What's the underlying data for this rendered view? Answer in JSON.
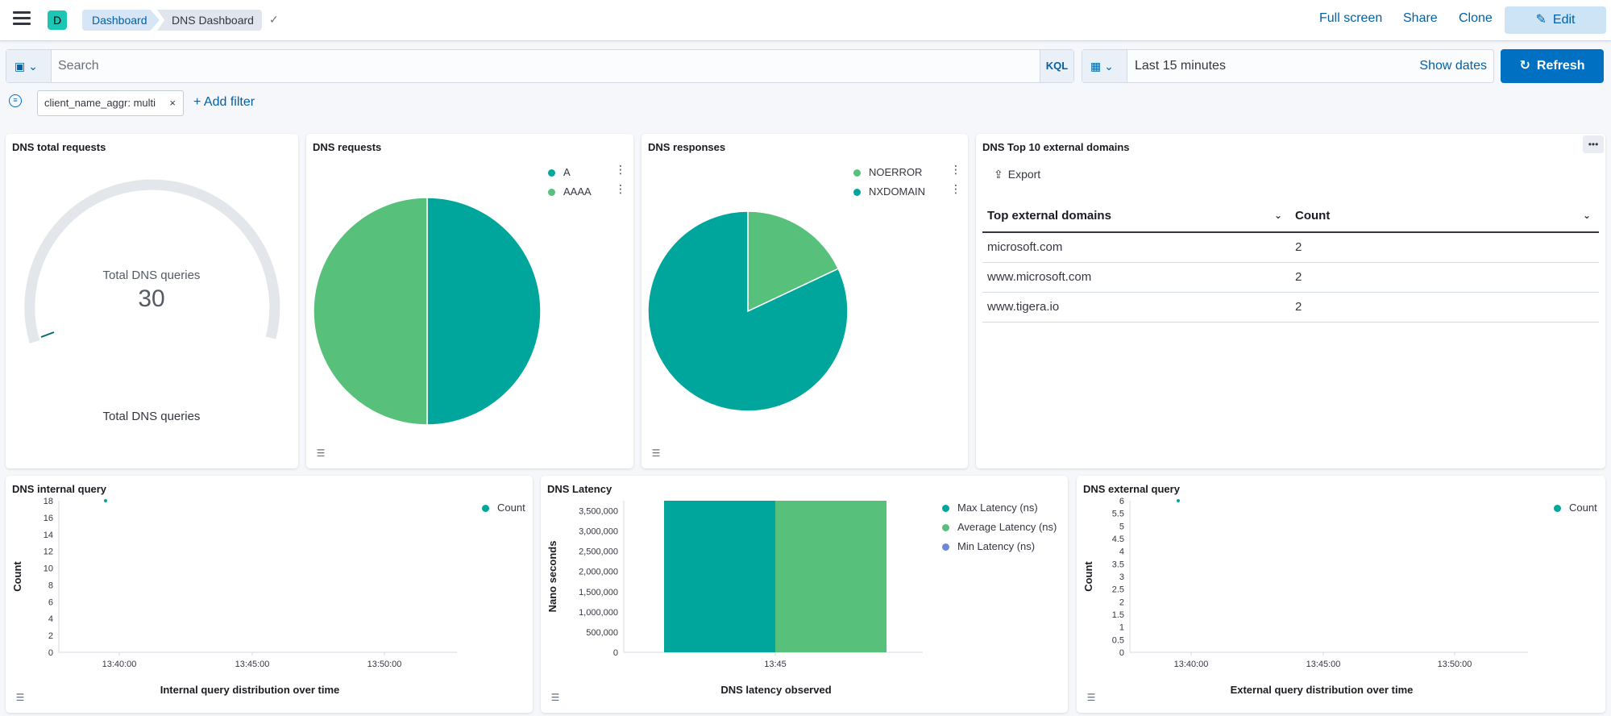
{
  "header": {
    "avatar_letter": "D",
    "breadcrumbs": [
      "Dashboard",
      "DNS Dashboard"
    ],
    "actions": {
      "full_screen": "Full screen",
      "share": "Share",
      "clone": "Clone",
      "edit": "Edit"
    }
  },
  "query_bar": {
    "placeholder": "Search",
    "language": "KQL",
    "time_range": "Last 15 minutes",
    "show_dates": "Show dates",
    "refresh": "Refresh"
  },
  "filters": {
    "pills": [
      "client_name_aggr: multi"
    ],
    "add_filter": "+ Add filter"
  },
  "panels": {
    "total_requests": {
      "title": "DNS total requests",
      "gauge_label": "Total DNS queries",
      "gauge_value": "30",
      "bottom_label": "Total DNS queries"
    },
    "requests": {
      "title": "DNS requests",
      "legend": [
        "A",
        "AAAA"
      ]
    },
    "responses": {
      "title": "DNS responses",
      "legend": [
        "NOERROR",
        "NXDOMAIN"
      ]
    },
    "top_domains": {
      "title": "DNS Top 10 external domains",
      "export": "Export",
      "columns": [
        "Top external domains",
        "Count"
      ],
      "rows": [
        [
          "microsoft.com",
          "2"
        ],
        [
          "www.microsoft.com",
          "2"
        ],
        [
          "www.tigera.io",
          "2"
        ]
      ]
    },
    "internal_query": {
      "title": "DNS internal query",
      "legend": [
        "Count"
      ],
      "x_title": "Internal query distribution over time",
      "y_title": "Count"
    },
    "latency": {
      "title": "DNS Latency",
      "legend": [
        "Max Latency (ns)",
        "Average Latency (ns)",
        "Min Latency (ns)"
      ],
      "x_title": "DNS latency observed",
      "y_title": "Nano seconds"
    },
    "external_query": {
      "title": "DNS external query",
      "legend": [
        "Count"
      ],
      "x_title": "External query distribution over time",
      "y_title": "Count"
    }
  },
  "colors": {
    "teal": "#00a69b",
    "green": "#57c17b",
    "blue_gray": "#6f87d8",
    "accent": "#0071c2"
  },
  "chart_data": [
    {
      "type": "pie",
      "title": "DNS requests",
      "categories": [
        "A",
        "AAAA"
      ],
      "values": [
        50,
        50
      ]
    },
    {
      "type": "pie",
      "title": "DNS responses",
      "categories": [
        "NOERROR",
        "NXDOMAIN"
      ],
      "values": [
        18,
        82
      ]
    },
    {
      "type": "scatter",
      "title": "DNS internal query",
      "xlabel": "Internal query distribution over time",
      "ylabel": "Count",
      "x_ticks": [
        "13:40:00",
        "13:45:00",
        "13:50:00"
      ],
      "y_ticks": [
        0,
        2,
        4,
        6,
        8,
        10,
        12,
        14,
        16,
        18
      ],
      "ylim": [
        0,
        18
      ],
      "series": [
        {
          "name": "Count",
          "x": [
            "13:39:10"
          ],
          "y": [
            18
          ]
        }
      ]
    },
    {
      "type": "bar",
      "title": "DNS Latency",
      "xlabel": "DNS latency observed",
      "ylabel": "Nano seconds",
      "categories": [
        "13:45"
      ],
      "y_ticks": [
        0,
        500000,
        1000000,
        1500000,
        2000000,
        2500000,
        3000000,
        3500000
      ],
      "ylim": [
        0,
        3750000
      ],
      "series": [
        {
          "name": "Max Latency (ns)",
          "values": [
            3750000
          ]
        },
        {
          "name": "Average Latency (ns)",
          "values": [
            3750000
          ]
        },
        {
          "name": "Min Latency (ns)",
          "values": [
            0
          ]
        }
      ]
    },
    {
      "type": "scatter",
      "title": "DNS external query",
      "xlabel": "External query distribution over time",
      "ylabel": "Count",
      "x_ticks": [
        "13:40:00",
        "13:45:00",
        "13:50:00"
      ],
      "y_ticks": [
        0,
        0.5,
        1,
        1.5,
        2,
        2.5,
        3,
        3.5,
        4,
        4.5,
        5,
        5.5,
        6
      ],
      "ylim": [
        0,
        6
      ],
      "series": [
        {
          "name": "Count",
          "x": [
            "13:39:10"
          ],
          "y": [
            6
          ]
        }
      ]
    }
  ]
}
